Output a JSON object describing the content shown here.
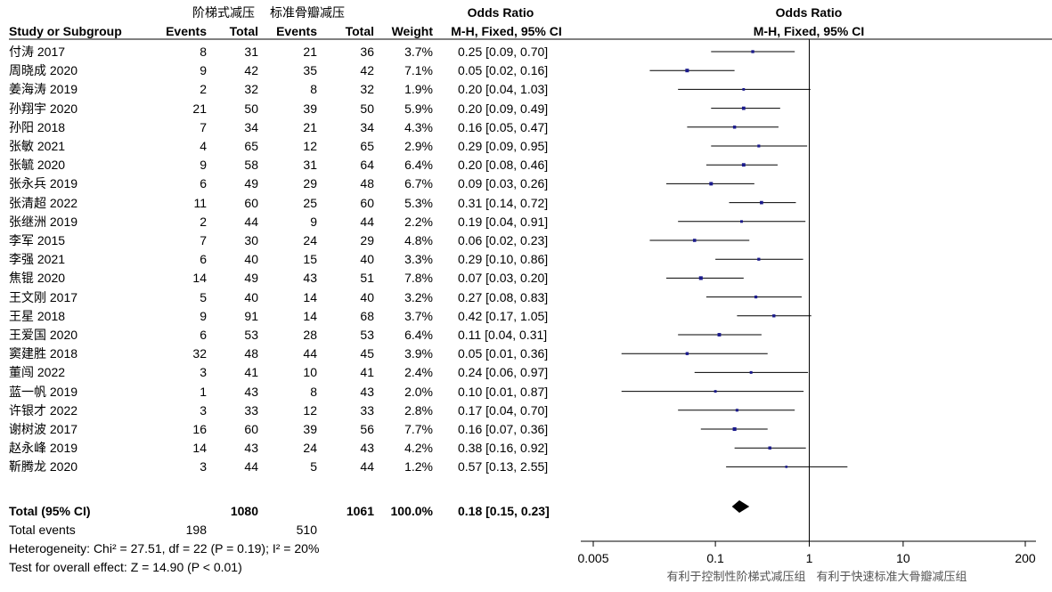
{
  "header": {
    "group1": "阶梯式减压",
    "group2": "标准骨瓣减压",
    "study_col": "Study or Subgroup",
    "events": "Events",
    "total": "Total",
    "weight": "Weight",
    "or_title": "Odds Ratio",
    "or_method": "M-H, Fixed, 95% CI",
    "plot_title": "Odds Ratio",
    "plot_method": "M-H, Fixed, 95% CI"
  },
  "studies": [
    {
      "name": "付涛 2017",
      "e1": "8",
      "t1": "31",
      "e2": "21",
      "t2": "36",
      "weight": "3.7%",
      "ci": "0.25 [0.09, 0.70]"
    },
    {
      "name": "周晓成 2020",
      "e1": "9",
      "t1": "42",
      "e2": "35",
      "t2": "42",
      "weight": "7.1%",
      "ci": "0.05 [0.02, 0.16]"
    },
    {
      "name": "姜海涛 2019",
      "e1": "2",
      "t1": "32",
      "e2": "8",
      "t2": "32",
      "weight": "1.9%",
      "ci": "0.20 [0.04, 1.03]"
    },
    {
      "name": "孙翔宇 2020",
      "e1": "21",
      "t1": "50",
      "e2": "39",
      "t2": "50",
      "weight": "5.9%",
      "ci": "0.20 [0.09, 0.49]"
    },
    {
      "name": "孙阳 2018",
      "e1": "7",
      "t1": "34",
      "e2": "21",
      "t2": "34",
      "weight": "4.3%",
      "ci": "0.16 [0.05, 0.47]"
    },
    {
      "name": "张敏 2021",
      "e1": "4",
      "t1": "65",
      "e2": "12",
      "t2": "65",
      "weight": "2.9%",
      "ci": "0.29 [0.09, 0.95]"
    },
    {
      "name": "张毓 2020",
      "e1": "9",
      "t1": "58",
      "e2": "31",
      "t2": "64",
      "weight": "6.4%",
      "ci": "0.20 [0.08, 0.46]"
    },
    {
      "name": "张永兵 2019",
      "e1": "6",
      "t1": "49",
      "e2": "29",
      "t2": "48",
      "weight": "6.7%",
      "ci": "0.09 [0.03, 0.26]"
    },
    {
      "name": "张清超 2022",
      "e1": "11",
      "t1": "60",
      "e2": "25",
      "t2": "60",
      "weight": "5.3%",
      "ci": "0.31 [0.14, 0.72]"
    },
    {
      "name": "张继洲 2019",
      "e1": "2",
      "t1": "44",
      "e2": "9",
      "t2": "44",
      "weight": "2.2%",
      "ci": "0.19 [0.04, 0.91]"
    },
    {
      "name": "李军 2015",
      "e1": "7",
      "t1": "30",
      "e2": "24",
      "t2": "29",
      "weight": "4.8%",
      "ci": "0.06 [0.02, 0.23]"
    },
    {
      "name": "李强 2021",
      "e1": "6",
      "t1": "40",
      "e2": "15",
      "t2": "40",
      "weight": "3.3%",
      "ci": "0.29 [0.10, 0.86]"
    },
    {
      "name": "焦锟 2020",
      "e1": "14",
      "t1": "49",
      "e2": "43",
      "t2": "51",
      "weight": "7.8%",
      "ci": "0.07 [0.03, 0.20]"
    },
    {
      "name": "王文刚 2017",
      "e1": "5",
      "t1": "40",
      "e2": "14",
      "t2": "40",
      "weight": "3.2%",
      "ci": "0.27 [0.08, 0.83]"
    },
    {
      "name": "王星 2018",
      "e1": "9",
      "t1": "91",
      "e2": "14",
      "t2": "68",
      "weight": "3.7%",
      "ci": "0.42 [0.17, 1.05]"
    },
    {
      "name": "王爱国 2020",
      "e1": "6",
      "t1": "53",
      "e2": "28",
      "t2": "53",
      "weight": "6.4%",
      "ci": "0.11 [0.04, 0.31]"
    },
    {
      "name": "窦建胜 2018",
      "e1": "32",
      "t1": "48",
      "e2": "44",
      "t2": "45",
      "weight": "3.9%",
      "ci": "0.05 [0.01, 0.36]"
    },
    {
      "name": "董闯 2022",
      "e1": "3",
      "t1": "41",
      "e2": "10",
      "t2": "41",
      "weight": "2.4%",
      "ci": "0.24 [0.06, 0.97]"
    },
    {
      "name": "蓝一帆 2019",
      "e1": "1",
      "t1": "43",
      "e2": "8",
      "t2": "43",
      "weight": "2.0%",
      "ci": "0.10 [0.01, 0.87]"
    },
    {
      "name": "许银才 2022",
      "e1": "3",
      "t1": "33",
      "e2": "12",
      "t2": "33",
      "weight": "2.8%",
      "ci": "0.17 [0.04, 0.70]"
    },
    {
      "name": "谢树波 2017",
      "e1": "16",
      "t1": "60",
      "e2": "39",
      "t2": "56",
      "weight": "7.7%",
      "ci": "0.16 [0.07, 0.36]"
    },
    {
      "name": "赵永峰 2019",
      "e1": "14",
      "t1": "43",
      "e2": "24",
      "t2": "43",
      "weight": "4.2%",
      "ci": "0.38 [0.16, 0.92]"
    },
    {
      "name": "靳腾龙 2020",
      "e1": "3",
      "t1": "44",
      "e2": "5",
      "t2": "44",
      "weight": "1.2%",
      "ci": "0.57 [0.13, 2.55]"
    }
  ],
  "total": {
    "label": "Total (95% CI)",
    "t1": "1080",
    "t2": "1061",
    "weight": "100.0%",
    "ci": "0.18 [0.15, 0.23]",
    "events_label": "Total events",
    "e1": "198",
    "e2": "510",
    "heterogeneity": "Heterogeneity: Chi² = 27.51, df = 22 (P = 0.19); I² = 20%",
    "overall": "Test for overall effect: Z = 14.90 (P < 0.01)"
  },
  "axis": {
    "ticks": [
      "0.005",
      "0.1",
      "1",
      "10",
      "200"
    ],
    "favours_left": "有利于控制性阶梯式减压组",
    "favours_right": "有利于快速标准大骨瓣减压组"
  },
  "colors": {
    "marker": "#1a1a8c",
    "line": "#000000",
    "favours": "#555555"
  },
  "chart_data": {
    "type": "forest",
    "scale": "log",
    "xlim": [
      0.005,
      200
    ],
    "xticks": [
      0.005,
      0.1,
      1,
      10,
      200
    ],
    "null_line": 1,
    "studies": [
      {
        "or": 0.25,
        "lo": 0.09,
        "hi": 0.7,
        "weight": 3.7
      },
      {
        "or": 0.05,
        "lo": 0.02,
        "hi": 0.16,
        "weight": 7.1
      },
      {
        "or": 0.2,
        "lo": 0.04,
        "hi": 1.03,
        "weight": 1.9
      },
      {
        "or": 0.2,
        "lo": 0.09,
        "hi": 0.49,
        "weight": 5.9
      },
      {
        "or": 0.16,
        "lo": 0.05,
        "hi": 0.47,
        "weight": 4.3
      },
      {
        "or": 0.29,
        "lo": 0.09,
        "hi": 0.95,
        "weight": 2.9
      },
      {
        "or": 0.2,
        "lo": 0.08,
        "hi": 0.46,
        "weight": 6.4
      },
      {
        "or": 0.09,
        "lo": 0.03,
        "hi": 0.26,
        "weight": 6.7
      },
      {
        "or": 0.31,
        "lo": 0.14,
        "hi": 0.72,
        "weight": 5.3
      },
      {
        "or": 0.19,
        "lo": 0.04,
        "hi": 0.91,
        "weight": 2.2
      },
      {
        "or": 0.06,
        "lo": 0.02,
        "hi": 0.23,
        "weight": 4.8
      },
      {
        "or": 0.29,
        "lo": 0.1,
        "hi": 0.86,
        "weight": 3.3
      },
      {
        "or": 0.07,
        "lo": 0.03,
        "hi": 0.2,
        "weight": 7.8
      },
      {
        "or": 0.27,
        "lo": 0.08,
        "hi": 0.83,
        "weight": 3.2
      },
      {
        "or": 0.42,
        "lo": 0.17,
        "hi": 1.05,
        "weight": 3.7
      },
      {
        "or": 0.11,
        "lo": 0.04,
        "hi": 0.31,
        "weight": 6.4
      },
      {
        "or": 0.05,
        "lo": 0.01,
        "hi": 0.36,
        "weight": 3.9
      },
      {
        "or": 0.24,
        "lo": 0.06,
        "hi": 0.97,
        "weight": 2.4
      },
      {
        "or": 0.1,
        "lo": 0.01,
        "hi": 0.87,
        "weight": 2.0
      },
      {
        "or": 0.17,
        "lo": 0.04,
        "hi": 0.7,
        "weight": 2.8
      },
      {
        "or": 0.16,
        "lo": 0.07,
        "hi": 0.36,
        "weight": 7.7
      },
      {
        "or": 0.38,
        "lo": 0.16,
        "hi": 0.92,
        "weight": 4.2
      },
      {
        "or": 0.57,
        "lo": 0.13,
        "hi": 2.55,
        "weight": 1.2
      }
    ],
    "total": {
      "or": 0.18,
      "lo": 0.15,
      "hi": 0.23
    }
  }
}
